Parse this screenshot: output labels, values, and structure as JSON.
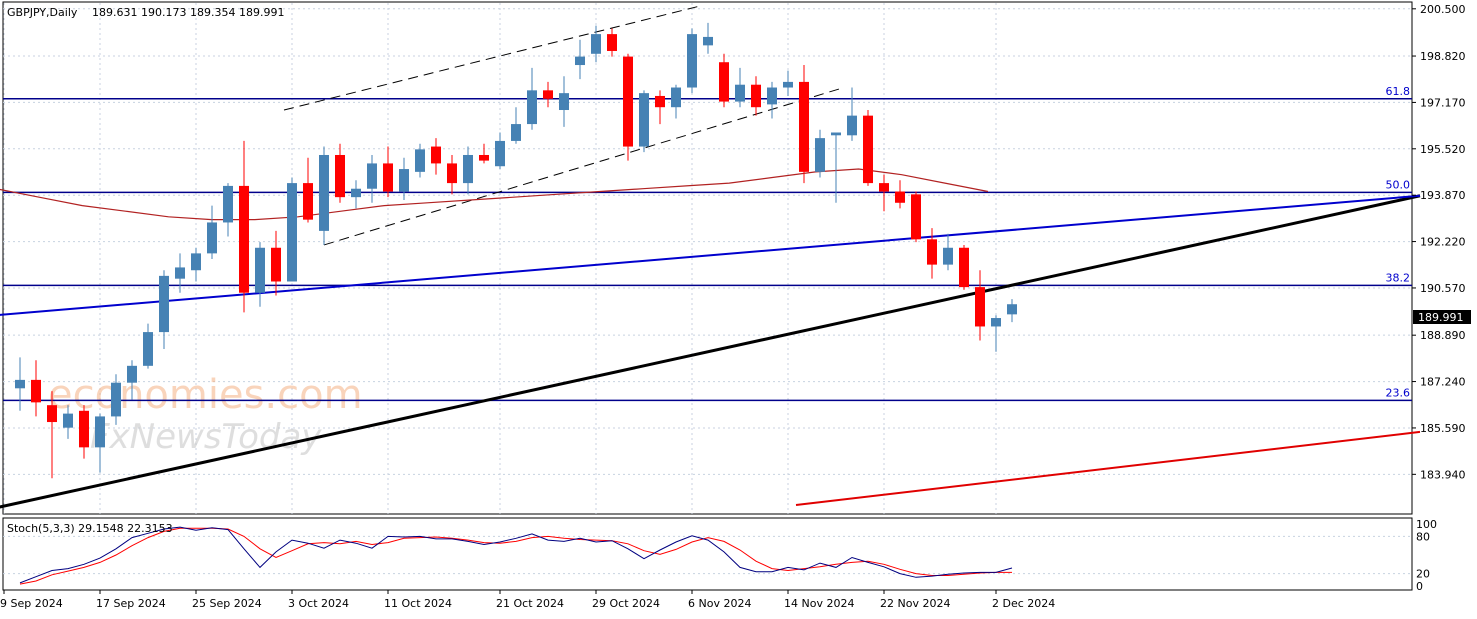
{
  "header": {
    "symbol": "GBPJPY,Daily",
    "ohlc": "189.631 190.173 189.354 189.991"
  },
  "stoch": {
    "label": "Stoch(5,3,3) 29.1548 22.3153",
    "levels": [
      "100",
      "80",
      "20",
      "0"
    ]
  },
  "watermark": {
    "line1": "economies.com",
    "line2": "FxNewsToday"
  },
  "current_price": "189.991",
  "colors": {
    "bull": "#4682b4",
    "bear": "#ff0000",
    "fib_line": "#00008b",
    "trend_main": "#000000",
    "trend_blue": "#0000cd",
    "trend_red": "#e00000",
    "ma": "#b22222",
    "stoch_main": "#000080",
    "stoch_signal": "#ff0000"
  },
  "chart_data": {
    "type": "candlestick",
    "title": "GBPJPY,Daily",
    "y_range": [
      182.6,
      200.6
    ],
    "y_ticks": [
      "200.500",
      "198.820",
      "197.170",
      "195.520",
      "193.870",
      "192.220",
      "190.570",
      "188.890",
      "187.240",
      "185.590",
      "183.940"
    ],
    "x_ticks": [
      "9 Sep 2024",
      "17 Sep 2024",
      "25 Sep 2024",
      "3 Oct 2024",
      "11 Oct 2024",
      "21 Oct 2024",
      "29 Oct 2024",
      "6 Nov 2024",
      "14 Nov 2024",
      "22 Nov 2024",
      "2 Dec 2024"
    ],
    "fibonacci_levels": [
      {
        "label": "61.8",
        "price": 197.3
      },
      {
        "label": "50.0",
        "price": 193.97
      },
      {
        "label": "38.2",
        "price": 190.66
      },
      {
        "label": "23.6",
        "price": 186.57
      }
    ],
    "candles": [
      {
        "o": 187.0,
        "h": 188.1,
        "l": 186.2,
        "c": 187.3
      },
      {
        "o": 187.3,
        "h": 188.0,
        "l": 186.0,
        "c": 186.5
      },
      {
        "o": 186.4,
        "h": 186.9,
        "l": 183.8,
        "c": 185.8
      },
      {
        "o": 185.6,
        "h": 186.4,
        "l": 185.2,
        "c": 186.1
      },
      {
        "o": 186.2,
        "h": 186.4,
        "l": 184.5,
        "c": 184.9
      },
      {
        "o": 184.9,
        "h": 186.1,
        "l": 184.0,
        "c": 186.0
      },
      {
        "o": 186.0,
        "h": 187.5,
        "l": 185.7,
        "c": 187.2
      },
      {
        "o": 187.2,
        "h": 188.0,
        "l": 186.6,
        "c": 187.8
      },
      {
        "o": 187.8,
        "h": 189.3,
        "l": 187.7,
        "c": 189.0
      },
      {
        "o": 189.0,
        "h": 191.2,
        "l": 188.4,
        "c": 191.0
      },
      {
        "o": 190.9,
        "h": 191.8,
        "l": 190.4,
        "c": 191.3
      },
      {
        "o": 191.2,
        "h": 192.0,
        "l": 190.8,
        "c": 191.8
      },
      {
        "o": 191.8,
        "h": 193.5,
        "l": 191.6,
        "c": 192.9
      },
      {
        "o": 192.9,
        "h": 194.3,
        "l": 192.4,
        "c": 194.2
      },
      {
        "o": 194.2,
        "h": 195.8,
        "l": 189.7,
        "c": 190.4
      },
      {
        "o": 190.4,
        "h": 192.2,
        "l": 189.9,
        "c": 192.0
      },
      {
        "o": 192.0,
        "h": 192.6,
        "l": 190.3,
        "c": 190.8
      },
      {
        "o": 190.8,
        "h": 194.5,
        "l": 190.8,
        "c": 194.3
      },
      {
        "o": 194.3,
        "h": 195.2,
        "l": 192.9,
        "c": 193.0
      },
      {
        "o": 192.6,
        "h": 195.6,
        "l": 192.1,
        "c": 195.3
      },
      {
        "o": 195.3,
        "h": 195.7,
        "l": 193.6,
        "c": 193.8
      },
      {
        "o": 193.8,
        "h": 194.4,
        "l": 193.4,
        "c": 194.1
      },
      {
        "o": 194.1,
        "h": 195.3,
        "l": 193.6,
        "c": 195.0
      },
      {
        "o": 195.0,
        "h": 195.6,
        "l": 193.8,
        "c": 194.0
      },
      {
        "o": 194.0,
        "h": 195.2,
        "l": 193.7,
        "c": 194.8
      },
      {
        "o": 194.7,
        "h": 195.7,
        "l": 194.5,
        "c": 195.5
      },
      {
        "o": 195.6,
        "h": 195.9,
        "l": 194.6,
        "c": 195.0
      },
      {
        "o": 195.0,
        "h": 195.3,
        "l": 193.9,
        "c": 194.3
      },
      {
        "o": 194.3,
        "h": 195.6,
        "l": 193.9,
        "c": 195.3
      },
      {
        "o": 195.3,
        "h": 195.7,
        "l": 195.0,
        "c": 195.1
      },
      {
        "o": 194.9,
        "h": 196.1,
        "l": 194.8,
        "c": 195.8
      },
      {
        "o": 195.8,
        "h": 197.0,
        "l": 195.7,
        "c": 196.4
      },
      {
        "o": 196.4,
        "h": 198.4,
        "l": 196.2,
        "c": 197.6
      },
      {
        "o": 197.6,
        "h": 197.9,
        "l": 197.0,
        "c": 197.3
      },
      {
        "o": 196.9,
        "h": 198.1,
        "l": 196.3,
        "c": 197.5
      },
      {
        "o": 198.5,
        "h": 199.4,
        "l": 198.0,
        "c": 198.8
      },
      {
        "o": 198.9,
        "h": 199.9,
        "l": 198.6,
        "c": 199.6
      },
      {
        "o": 199.6,
        "h": 199.8,
        "l": 198.8,
        "c": 199.0
      },
      {
        "o": 198.8,
        "h": 198.9,
        "l": 195.1,
        "c": 195.6
      },
      {
        "o": 195.6,
        "h": 197.6,
        "l": 195.4,
        "c": 197.5
      },
      {
        "o": 197.4,
        "h": 197.6,
        "l": 196.4,
        "c": 197.0
      },
      {
        "o": 197.0,
        "h": 197.8,
        "l": 196.6,
        "c": 197.7
      },
      {
        "o": 197.7,
        "h": 199.8,
        "l": 197.5,
        "c": 199.6
      },
      {
        "o": 199.2,
        "h": 200.0,
        "l": 198.9,
        "c": 199.5
      },
      {
        "o": 198.6,
        "h": 198.9,
        "l": 197.0,
        "c": 197.2
      },
      {
        "o": 197.2,
        "h": 198.4,
        "l": 197.0,
        "c": 197.8
      },
      {
        "o": 197.8,
        "h": 198.1,
        "l": 196.7,
        "c": 197.0
      },
      {
        "o": 197.1,
        "h": 197.9,
        "l": 196.6,
        "c": 197.7
      },
      {
        "o": 197.7,
        "h": 198.3,
        "l": 197.4,
        "c": 197.9
      },
      {
        "o": 197.9,
        "h": 198.5,
        "l": 194.3,
        "c": 194.7
      },
      {
        "o": 194.7,
        "h": 196.2,
        "l": 194.5,
        "c": 195.9
      },
      {
        "o": 196.0,
        "h": 196.1,
        "l": 193.6,
        "c": 196.1
      },
      {
        "o": 196.0,
        "h": 197.7,
        "l": 195.8,
        "c": 196.7
      },
      {
        "o": 196.7,
        "h": 196.9,
        "l": 194.2,
        "c": 194.3
      },
      {
        "o": 194.3,
        "h": 194.6,
        "l": 193.3,
        "c": 194.0
      },
      {
        "o": 194.0,
        "h": 194.4,
        "l": 193.4,
        "c": 193.6
      },
      {
        "o": 193.9,
        "h": 194.0,
        "l": 192.2,
        "c": 192.3
      },
      {
        "o": 192.3,
        "h": 192.7,
        "l": 190.9,
        "c": 191.4
      },
      {
        "o": 191.4,
        "h": 192.5,
        "l": 191.2,
        "c": 192.0
      },
      {
        "o": 192.0,
        "h": 192.1,
        "l": 190.5,
        "c": 190.6
      },
      {
        "o": 190.6,
        "h": 191.2,
        "l": 188.7,
        "c": 189.2
      },
      {
        "o": 189.2,
        "h": 189.6,
        "l": 188.3,
        "c": 189.5
      },
      {
        "o": 189.631,
        "h": 190.173,
        "l": 189.354,
        "c": 189.991
      }
    ],
    "ma_points": [
      194.1,
      193.8,
      193.5,
      193.3,
      193.1,
      193.0,
      193.0,
      193.1,
      193.3,
      193.5,
      193.6,
      193.7,
      193.8,
      193.9,
      194.0,
      194.1,
      194.2,
      194.3,
      194.5,
      194.7,
      194.8,
      194.6,
      194.3,
      194.0
    ],
    "trendlines": [
      {
        "name": "black",
        "from": {
          "i": -1.5,
          "p": 182.75
        },
        "to": {
          "i": 87.5,
          "p": 193.85
        }
      },
      {
        "name": "blue",
        "from": {
          "i": -1.5,
          "p": 189.6
        },
        "to": {
          "i": 87.5,
          "p": 193.85
        }
      },
      {
        "name": "red",
        "from": {
          "i": 48.5,
          "p": 182.85
        },
        "to": {
          "i": 87.5,
          "p": 185.45
        }
      }
    ],
    "channel": [
      {
        "from": {
          "i": 16.5,
          "p": 196.9
        },
        "to": {
          "i": 42.5,
          "p": 200.6
        }
      },
      {
        "from": {
          "i": 19.0,
          "p": 192.1
        },
        "to": {
          "i": 51.5,
          "p": 197.7
        }
      }
    ],
    "stochastic": {
      "main": [
        5,
        15,
        25,
        28,
        35,
        45,
        60,
        78,
        85,
        92,
        95,
        90,
        94,
        91,
        60,
        30,
        55,
        74,
        69,
        61,
        74,
        69,
        61,
        80,
        79,
        80,
        76,
        76,
        72,
        67,
        71,
        77,
        84,
        74,
        72,
        77,
        71,
        73,
        60,
        44,
        58,
        71,
        81,
        74,
        55,
        30,
        23,
        23,
        30,
        26,
        37,
        30,
        46,
        38,
        31,
        20,
        14,
        16,
        19,
        21,
        22,
        22,
        29
      ],
      "signal": [
        3,
        8,
        18,
        24,
        30,
        38,
        50,
        65,
        78,
        88,
        93,
        93,
        93,
        92,
        80,
        60,
        46,
        57,
        68,
        70,
        68,
        72,
        67,
        70,
        77,
        78,
        79,
        77,
        74,
        70,
        69,
        72,
        78,
        80,
        77,
        75,
        74,
        73,
        68,
        57,
        51,
        59,
        71,
        78,
        72,
        58,
        40,
        28,
        25,
        28,
        31,
        35,
        38,
        40,
        35,
        27,
        20,
        17,
        17,
        19,
        21,
        22,
        22
      ]
    }
  }
}
